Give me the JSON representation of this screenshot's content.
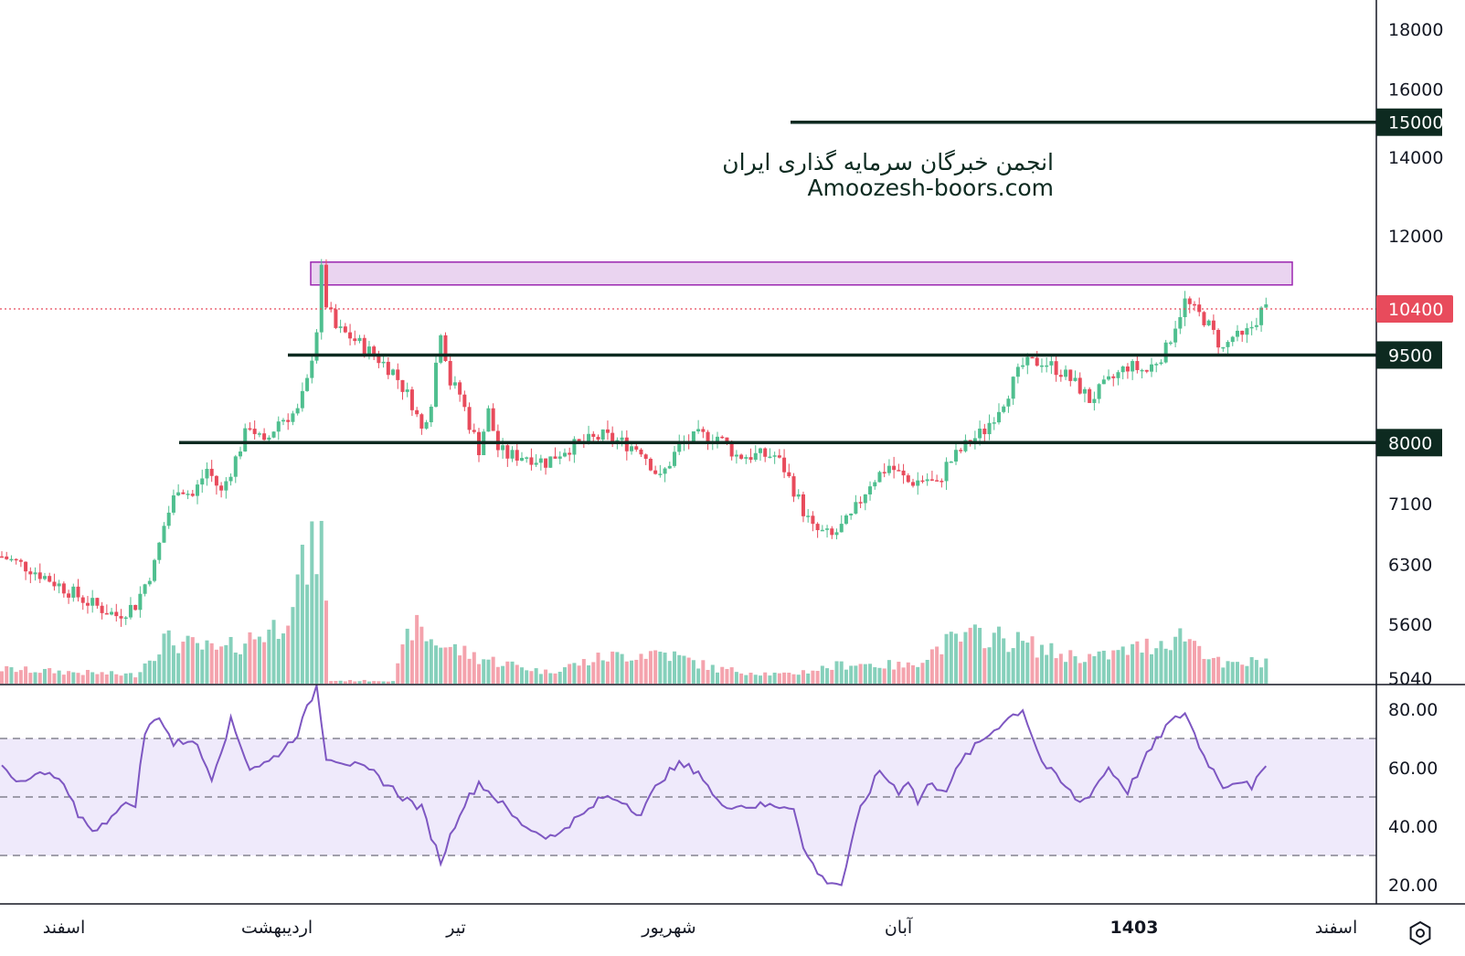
{
  "watermark": {
    "line1": "انجمن خبرگان سرمایه گذاری ایران",
    "line2": "Amoozesh-boors.com"
  },
  "colors": {
    "up": "#4fbf8f",
    "down": "#e84b5c",
    "volume_up": "#86d0bb",
    "volume_down": "#f4a3ad",
    "rsi_line": "#7e57c2",
    "rsi_band": "#efeafb",
    "zone_fill": "#ead4f0",
    "zone_border": "#9c27b0",
    "level_line": "#0d2a20",
    "last_price": "#e84b5c"
  },
  "price_axis": {
    "ticks": [
      "18000",
      "16000",
      "14000",
      "12000",
      "9500",
      "7100",
      "6300",
      "5600",
      "5040"
    ],
    "scale": "log"
  },
  "rsi_axis": {
    "ticks": [
      "80.00",
      "60.00",
      "40.00",
      "20.00"
    ]
  },
  "time_axis": {
    "labels": [
      "اسفند",
      "اردیبهشت",
      "تیر",
      "شهریور",
      "آبان",
      "1403",
      "اسفند"
    ]
  },
  "last_price": {
    "value": 10400,
    "label": "10400"
  },
  "horizontal_levels": [
    {
      "value": 15000,
      "label": "15000"
    },
    {
      "value": 9500,
      "label": "9500"
    },
    {
      "value": 8000,
      "label": "8000"
    }
  ],
  "resistance_zone": {
    "low": 10900,
    "high": 11400
  },
  "chart_data": {
    "type": "candlestick",
    "y_scale": "log",
    "ylim": [
      5040,
      19000
    ],
    "price_anchors": [
      [
        0,
        6400
      ],
      [
        6,
        6250
      ],
      [
        12,
        6050
      ],
      [
        18,
        5850
      ],
      [
        24,
        5700
      ],
      [
        28,
        5820
      ],
      [
        32,
        6300
      ],
      [
        34,
        6800
      ],
      [
        37,
        7350
      ],
      [
        40,
        7200
      ],
      [
        43,
        7600
      ],
      [
        46,
        7250
      ],
      [
        49,
        7750
      ],
      [
        52,
        8300
      ],
      [
        55,
        7950
      ],
      [
        58,
        8350
      ],
      [
        62,
        8500
      ],
      [
        64,
        9000
      ],
      [
        66,
        10000
      ],
      [
        67,
        11200
      ],
      [
        68,
        10500
      ],
      [
        70,
        10000
      ],
      [
        73,
        9850
      ],
      [
        78,
        9500
      ],
      [
        82,
        9200
      ],
      [
        86,
        8650
      ],
      [
        88,
        8200
      ],
      [
        90,
        8700
      ],
      [
        92,
        10000
      ],
      [
        94,
        9000
      ],
      [
        96,
        8800
      ],
      [
        98,
        8300
      ],
      [
        100,
        7900
      ],
      [
        102,
        8500
      ],
      [
        104,
        7900
      ],
      [
        106,
        7800
      ],
      [
        110,
        7800
      ],
      [
        114,
        7700
      ],
      [
        118,
        7900
      ],
      [
        122,
        8000
      ],
      [
        126,
        8100
      ],
      [
        130,
        8000
      ],
      [
        134,
        7900
      ],
      [
        138,
        7450
      ],
      [
        140,
        7700
      ],
      [
        142,
        7950
      ],
      [
        146,
        8100
      ],
      [
        150,
        8100
      ],
      [
        154,
        7800
      ],
      [
        158,
        7800
      ],
      [
        162,
        7800
      ],
      [
        164,
        7600
      ],
      [
        166,
        7300
      ],
      [
        168,
        7000
      ],
      [
        170,
        6750
      ],
      [
        174,
        6650
      ],
      [
        178,
        6900
      ],
      [
        182,
        7400
      ],
      [
        186,
        7650
      ],
      [
        190,
        7400
      ],
      [
        194,
        7450
      ],
      [
        196,
        7350
      ],
      [
        198,
        7650
      ],
      [
        202,
        7950
      ],
      [
        206,
        8200
      ],
      [
        210,
        8700
      ],
      [
        214,
        9300
      ],
      [
        218,
        9400
      ],
      [
        222,
        9200
      ],
      [
        226,
        8900
      ],
      [
        228,
        8700
      ],
      [
        232,
        9000
      ],
      [
        236,
        9300
      ],
      [
        240,
        9200
      ],
      [
        242,
        9400
      ],
      [
        244,
        9600
      ],
      [
        246,
        10100
      ],
      [
        248,
        10550
      ],
      [
        250,
        10350
      ],
      [
        252,
        10200
      ],
      [
        254,
        9900
      ],
      [
        256,
        9600
      ],
      [
        258,
        9850
      ],
      [
        260,
        9800
      ],
      [
        262,
        10050
      ],
      [
        264,
        10350
      ],
      [
        265,
        10400
      ]
    ],
    "volume_anchors": [
      [
        0,
        0.1
      ],
      [
        28,
        0.06
      ],
      [
        34,
        0.3
      ],
      [
        46,
        0.22
      ],
      [
        58,
        0.4
      ],
      [
        62,
        0.7
      ],
      [
        67,
        1.0
      ],
      [
        69,
        0.02
      ],
      [
        82,
        0.02
      ],
      [
        86,
        0.4
      ],
      [
        90,
        0.3
      ],
      [
        94,
        0.25
      ],
      [
        100,
        0.18
      ],
      [
        114,
        0.08
      ],
      [
        126,
        0.18
      ],
      [
        138,
        0.22
      ],
      [
        150,
        0.1
      ],
      [
        164,
        0.06
      ],
      [
        178,
        0.14
      ],
      [
        190,
        0.12
      ],
      [
        198,
        0.28
      ],
      [
        206,
        0.34
      ],
      [
        214,
        0.28
      ],
      [
        222,
        0.2
      ],
      [
        230,
        0.18
      ],
      [
        240,
        0.26
      ],
      [
        248,
        0.34
      ],
      [
        256,
        0.12
      ],
      [
        265,
        0.16
      ]
    ],
    "rsi": {
      "values": [
        [
          0,
          62
        ],
        [
          4,
          54
        ],
        [
          8,
          58
        ],
        [
          12,
          56
        ],
        [
          16,
          44
        ],
        [
          20,
          38
        ],
        [
          24,
          46
        ],
        [
          28,
          48
        ],
        [
          30,
          72
        ],
        [
          33,
          78
        ],
        [
          36,
          68
        ],
        [
          40,
          70
        ],
        [
          44,
          57
        ],
        [
          48,
          76
        ],
        [
          52,
          60
        ],
        [
          56,
          62
        ],
        [
          60,
          68
        ],
        [
          62,
          72
        ],
        [
          66,
          88
        ],
        [
          68,
          64
        ],
        [
          72,
          62
        ],
        [
          78,
          58
        ],
        [
          84,
          50
        ],
        [
          88,
          46
        ],
        [
          92,
          28
        ],
        [
          96,
          45
        ],
        [
          100,
          55
        ],
        [
          104,
          49
        ],
        [
          108,
          42
        ],
        [
          112,
          38
        ],
        [
          116,
          36
        ],
        [
          118,
          40
        ],
        [
          122,
          44
        ],
        [
          126,
          50
        ],
        [
          130,
          49
        ],
        [
          134,
          44
        ],
        [
          138,
          56
        ],
        [
          142,
          61
        ],
        [
          146,
          59
        ],
        [
          150,
          48
        ],
        [
          154,
          47
        ],
        [
          158,
          47
        ],
        [
          166,
          47
        ],
        [
          168,
          32
        ],
        [
          172,
          22
        ],
        [
          176,
          20
        ],
        [
          180,
          46
        ],
        [
          184,
          59
        ],
        [
          188,
          52
        ],
        [
          190,
          56
        ],
        [
          192,
          48
        ],
        [
          194,
          54
        ],
        [
          198,
          53
        ],
        [
          202,
          64
        ],
        [
          206,
          70
        ],
        [
          210,
          76
        ],
        [
          214,
          80
        ],
        [
          218,
          62
        ],
        [
          222,
          55
        ],
        [
          226,
          48
        ],
        [
          228,
          51
        ],
        [
          232,
          60
        ],
        [
          236,
          52
        ],
        [
          240,
          64
        ],
        [
          244,
          74
        ],
        [
          248,
          79
        ],
        [
          252,
          64
        ],
        [
          256,
          54
        ],
        [
          260,
          56
        ],
        [
          262,
          52
        ],
        [
          265,
          62
        ]
      ],
      "ylim": [
        15,
        90
      ],
      "overbought": 70,
      "middle": 50,
      "oversold": 30
    }
  }
}
